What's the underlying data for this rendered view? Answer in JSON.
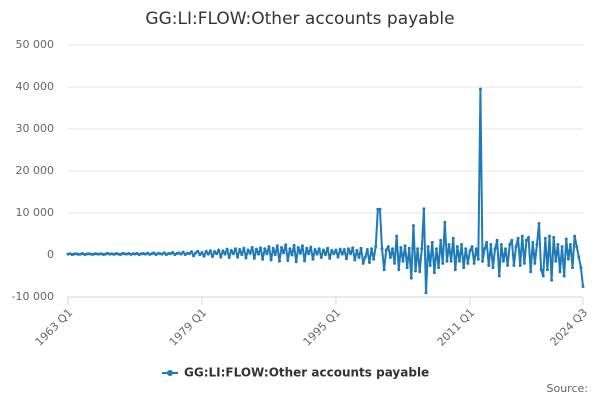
{
  "chart_data": {
    "type": "line",
    "title": "GG:LI:FLOW:Other accounts payable",
    "source": "Source:",
    "categories": [
      "1963 Q1",
      null,
      null,
      null,
      null,
      null,
      null,
      null,
      null,
      null,
      null,
      null,
      null,
      null,
      null,
      null,
      null,
      null,
      null,
      null,
      null,
      null,
      null,
      null,
      null,
      null,
      null,
      null,
      null,
      null,
      null,
      null,
      null,
      null,
      null,
      null,
      null,
      null,
      null,
      null,
      null,
      null,
      null,
      null,
      null,
      null,
      null,
      null,
      null,
      null,
      null,
      null,
      null,
      null,
      null,
      null,
      null,
      null,
      null,
      null,
      null,
      null,
      null,
      null,
      "1979 Q1",
      null,
      null,
      null,
      null,
      null,
      null,
      null,
      null,
      null,
      null,
      null,
      null,
      null,
      null,
      null,
      null,
      null,
      null,
      null,
      null,
      null,
      null,
      null,
      null,
      null,
      null,
      null,
      null,
      null,
      null,
      null,
      null,
      null,
      null,
      null,
      null,
      null,
      null,
      null,
      null,
      null,
      null,
      null,
      null,
      null,
      null,
      null,
      null,
      null,
      null,
      null,
      null,
      null,
      null,
      null,
      null,
      null,
      null,
      null,
      null,
      null,
      null,
      null,
      "1995 Q1",
      null,
      null,
      null,
      null,
      null,
      null,
      null,
      null,
      null,
      null,
      null,
      null,
      null,
      null,
      null,
      null,
      null,
      null,
      null,
      null,
      null,
      null,
      null,
      null,
      null,
      null,
      null,
      null,
      null,
      null,
      null,
      null,
      null,
      null,
      null,
      null,
      null,
      null,
      null,
      null,
      null,
      null,
      null,
      null,
      null,
      null,
      null,
      null,
      null,
      null,
      null,
      null,
      null,
      null,
      null,
      null,
      null,
      null,
      null,
      null,
      null,
      null,
      null,
      "2011 Q1",
      null,
      null,
      null,
      null,
      null,
      null,
      null,
      null,
      null,
      null,
      null,
      null,
      null,
      null,
      null,
      null,
      null,
      null,
      null,
      null,
      null,
      null,
      null,
      null,
      null,
      null,
      null,
      null,
      null,
      null,
      null,
      null,
      null,
      null,
      null,
      null,
      null,
      null,
      null,
      null,
      null,
      null,
      null,
      null,
      null,
      null,
      null,
      null,
      null,
      null,
      null,
      null,
      null,
      "2024 Q3"
    ],
    "series": [
      {
        "name": "GG:LI:FLOW:Other accounts payable",
        "color": "#1f7ab8",
        "values": [
          200,
          300,
          100,
          250,
          300,
          150,
          200,
          350,
          100,
          250,
          300,
          200,
          150,
          300,
          250,
          200,
          300,
          100,
          250,
          400,
          200,
          300,
          150,
          350,
          250,
          100,
          400,
          300,
          200,
          350,
          150,
          300,
          250,
          400,
          100,
          300,
          350,
          200,
          450,
          150,
          300,
          500,
          100,
          400,
          300,
          200,
          550,
          100,
          400,
          300,
          600,
          100,
          350,
          500,
          200,
          700,
          100,
          450,
          300,
          800,
          -200,
          500,
          900,
          100,
          600,
          -300,
          900,
          200,
          1000,
          -400,
          800,
          300,
          1200,
          -500,
          1000,
          200,
          1400,
          -600,
          1100,
          300,
          1500,
          -500,
          1300,
          100,
          1600,
          -700,
          1200,
          400,
          1800,
          -800,
          1400,
          200,
          1700,
          -1000,
          1500,
          300,
          2000,
          -1200,
          1600,
          100,
          2200,
          -1500,
          1800,
          500,
          2400,
          -1300,
          1500,
          0,
          2300,
          -1600,
          1800,
          400,
          2200,
          -1400,
          1600,
          300,
          1900,
          -1000,
          1300,
          200,
          1500,
          -600,
          1200,
          100,
          1600,
          -800,
          1100,
          300,
          1200,
          -500,
          1400,
          200,
          1300,
          -900,
          1500,
          300,
          1700,
          -1200,
          1100,
          -600,
          1600,
          -2000,
          -500,
          1300,
          -1800,
          1500,
          -1000,
          2000,
          10900,
          10900,
          1500,
          -3500,
          1200,
          2000,
          -600,
          1500,
          -2000,
          4500,
          -3500,
          1800,
          -1500,
          2200,
          -3000,
          1600,
          -5500,
          7000,
          -3800,
          1500,
          -4000,
          1500,
          11000,
          -9000,
          2000,
          -2500,
          3000,
          -4200,
          1500,
          -3000,
          3500,
          -2000,
          7800,
          -1500,
          2500,
          -1500,
          4000,
          -3500,
          2000,
          -1500,
          2500,
          -3000,
          1500,
          -2000,
          1000,
          2000,
          -2000,
          1500,
          -1000,
          39500,
          -1500,
          1500,
          3000,
          -2500,
          2500,
          -3000,
          1500,
          3500,
          -5000,
          2500,
          -1500,
          1500,
          -2500,
          2500,
          3500,
          -2500,
          2000,
          4000,
          -2500,
          4500,
          -2000,
          3500,
          4200,
          -4000,
          3000,
          -2000,
          2500,
          7500,
          -3500,
          -5000,
          4000,
          -3500,
          4500,
          -6000,
          4200,
          -1500,
          2500,
          -4000,
          2000,
          -5000,
          3800,
          -1000,
          2500,
          -3000,
          4500,
          2000,
          -500,
          -3000,
          -7500
        ]
      }
    ],
    "ylim": [
      -10000,
      50000
    ],
    "yticks": [
      {
        "value": -10000,
        "label": "-10 000"
      },
      0,
      {
        "value": 10000,
        "label": "10 000"
      },
      {
        "value": 20000,
        "label": "20 000"
      },
      {
        "value": 30000,
        "label": "30 000"
      },
      {
        "value": 40000,
        "label": "40 000"
      },
      {
        "value": 50000,
        "label": "50 000"
      }
    ],
    "grid": true
  }
}
